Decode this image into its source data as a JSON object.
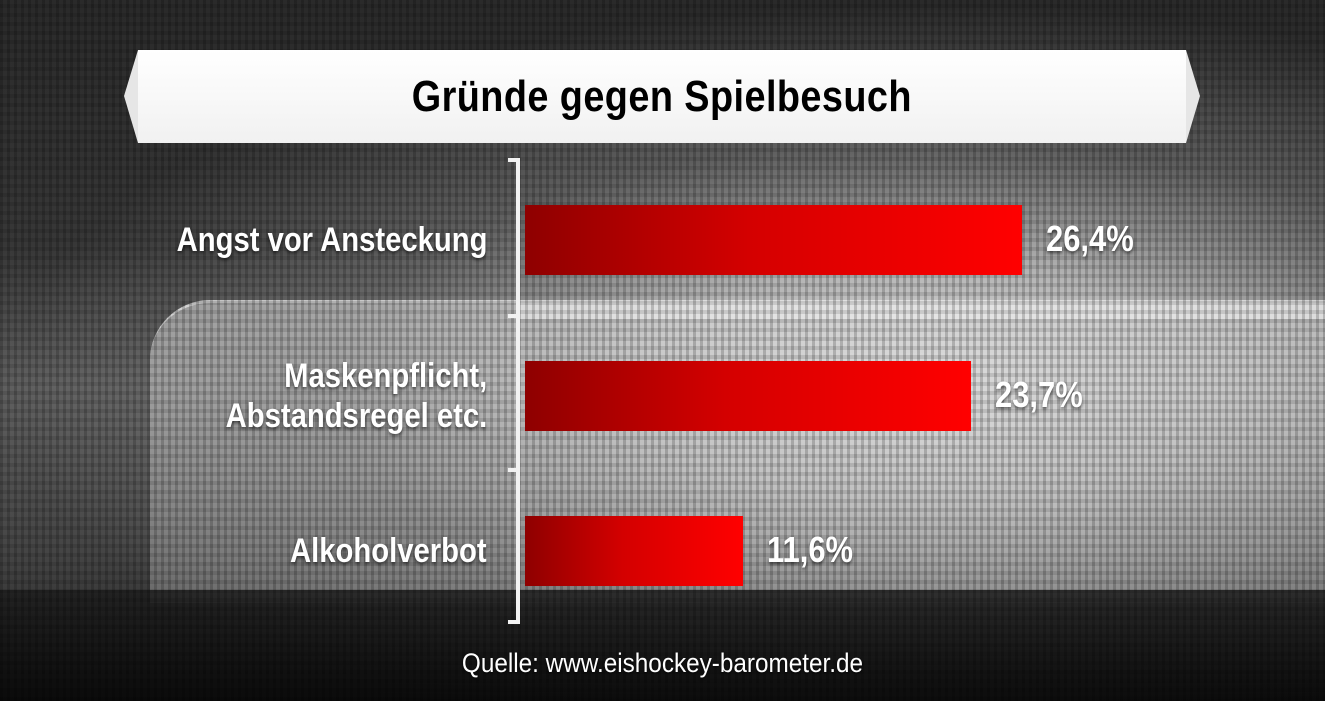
{
  "chart_data": {
    "type": "bar",
    "orientation": "horizontal",
    "title": "Gründe gegen Spielbesuch",
    "categories": [
      "Angst vor Ansteckung",
      "Maskenpflicht,\nAbstandsregel etc.",
      "Alkoholverbot"
    ],
    "values": [
      26.4,
      23.7,
      11.6
    ],
    "value_labels": [
      "26,4%",
      "23,7%",
      "11,6%"
    ],
    "unit": "%",
    "xlim": [
      0,
      30
    ],
    "bar_color": "#ff0000",
    "source": "Quelle: www.eishockey-barometer.de"
  }
}
